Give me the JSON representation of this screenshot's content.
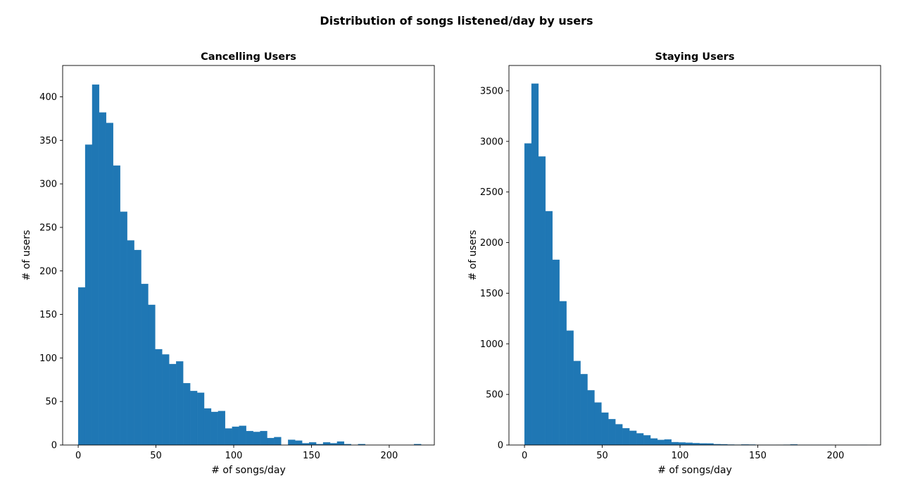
{
  "figure": {
    "suptitle": "Distribution of songs listened/day by users",
    "bar_color": "#1f77b4"
  },
  "chart_data": [
    {
      "type": "bar",
      "title": "Cancelling Users",
      "xlabel": "# of songs/day",
      "ylabel": "# of users",
      "xlim": [
        -10,
        229
      ],
      "ylim": [
        0,
        436
      ],
      "xticks": [
        0,
        50,
        100,
        150,
        200
      ],
      "yticks": [
        0,
        50,
        100,
        150,
        200,
        250,
        300,
        350,
        400
      ],
      "bin_start": 0,
      "bin_width": 4.5,
      "values": [
        181,
        345,
        414,
        382,
        370,
        321,
        268,
        235,
        224,
        185,
        161,
        110,
        104,
        93,
        96,
        71,
        62,
        60,
        42,
        38,
        39,
        19,
        21,
        22,
        16,
        15,
        16,
        8,
        9,
        0,
        6,
        5,
        2,
        3,
        1,
        3,
        2,
        4,
        1,
        0,
        1,
        0,
        0,
        0,
        0,
        0,
        0,
        0,
        1
      ]
    },
    {
      "type": "bar",
      "title": "Staying Users",
      "xlabel": "# of songs/day",
      "ylabel": "# of users",
      "xlim": [
        -10,
        229
      ],
      "ylim": [
        0,
        3750
      ],
      "xticks": [
        0,
        50,
        100,
        150,
        200
      ],
      "yticks": [
        0,
        500,
        1000,
        1500,
        2000,
        2500,
        3000,
        3500
      ],
      "bin_start": 0,
      "bin_width": 4.5,
      "values": [
        2980,
        3570,
        2850,
        2310,
        1830,
        1420,
        1130,
        830,
        700,
        540,
        420,
        320,
        255,
        205,
        165,
        140,
        115,
        95,
        65,
        50,
        55,
        28,
        25,
        22,
        18,
        16,
        15,
        8,
        7,
        4,
        3,
        5,
        4,
        2,
        2,
        1,
        2,
        3,
        6,
        1,
        1,
        1,
        1,
        1,
        0,
        0,
        0,
        0,
        1
      ]
    }
  ]
}
